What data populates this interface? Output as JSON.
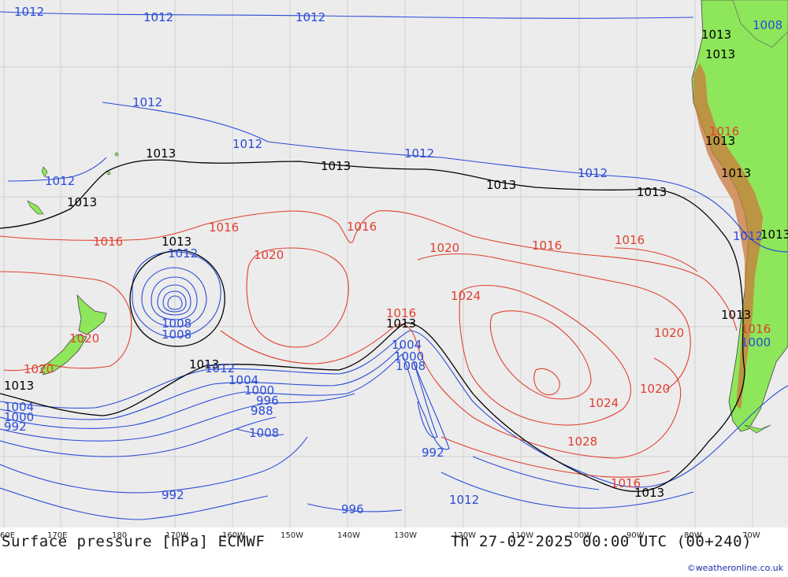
{
  "map": {
    "title": "Surface pressure [hPa] ECMWF",
    "valid_time": "Th 27-02-2025 00:00 UTC (00+240)",
    "credit": "©weatheronline.co.uk",
    "colors": {
      "ocean": "#ececec",
      "land": "#8ee65a",
      "andes": "#c97a3c",
      "isobar_low": "#2a4bd7",
      "isobar_high": "#e0402f",
      "isobar_1013": "#000000",
      "grid": "#d0d0d0"
    },
    "lon_labels": [
      "60E",
      "170E",
      "180",
      "170W",
      "160W",
      "150W",
      "140W",
      "130W",
      "120W",
      "110W",
      "100W",
      "90W",
      "80W",
      "70W"
    ],
    "isobar_labels": {
      "black": [
        {
          "text": "1013",
          "key": "b1"
        },
        {
          "text": "1013",
          "key": "b2"
        },
        {
          "text": "1013",
          "key": "b3"
        },
        {
          "text": "1013",
          "key": "b4"
        },
        {
          "text": "1013",
          "key": "b5"
        },
        {
          "text": "1013",
          "key": "b6"
        },
        {
          "text": "1013",
          "key": "b7"
        },
        {
          "text": "1013",
          "key": "b8"
        },
        {
          "text": "1013",
          "key": "b9"
        },
        {
          "text": "1013",
          "key": "b10"
        },
        {
          "text": "1013",
          "key": "b11"
        },
        {
          "text": "1013",
          "key": "b12"
        },
        {
          "text": "1013",
          "key": "b13"
        },
        {
          "text": "1013",
          "key": "b14"
        },
        {
          "text": "1013",
          "key": "b15"
        },
        {
          "text": "1013",
          "key": "b16"
        }
      ],
      "blue": [
        {
          "text": "1012"
        },
        {
          "text": "1012"
        },
        {
          "text": "1012"
        },
        {
          "text": "1012"
        },
        {
          "text": "1012"
        },
        {
          "text": "1012"
        },
        {
          "text": "1012"
        },
        {
          "text": "1012"
        },
        {
          "text": "1012"
        },
        {
          "text": "1012"
        },
        {
          "text": "1012"
        },
        {
          "text": "1008"
        },
        {
          "text": "1000"
        },
        {
          "text": "1008"
        },
        {
          "text": "1008"
        },
        {
          "text": "1004"
        },
        {
          "text": "1000"
        },
        {
          "text": "996"
        },
        {
          "text": "988"
        },
        {
          "text": "1008"
        },
        {
          "text": "1004"
        },
        {
          "text": "1000"
        },
        {
          "text": "1008"
        },
        {
          "text": "1004"
        },
        {
          "text": "1000"
        },
        {
          "text": "992"
        },
        {
          "text": "992"
        },
        {
          "text": "992"
        },
        {
          "text": "996"
        },
        {
          "text": "1012"
        }
      ],
      "red": [
        {
          "text": "1016"
        },
        {
          "text": "1016"
        },
        {
          "text": "1016"
        },
        {
          "text": "1016"
        },
        {
          "text": "1016"
        },
        {
          "text": "1020"
        },
        {
          "text": "1020"
        },
        {
          "text": "1020"
        },
        {
          "text": "1020"
        },
        {
          "text": "1024"
        },
        {
          "text": "1020"
        },
        {
          "text": "1020"
        },
        {
          "text": "1024"
        },
        {
          "text": "1028"
        },
        {
          "text": "1016"
        },
        {
          "text": "1016"
        },
        {
          "text": "1016"
        },
        {
          "text": "1016"
        }
      ]
    }
  }
}
